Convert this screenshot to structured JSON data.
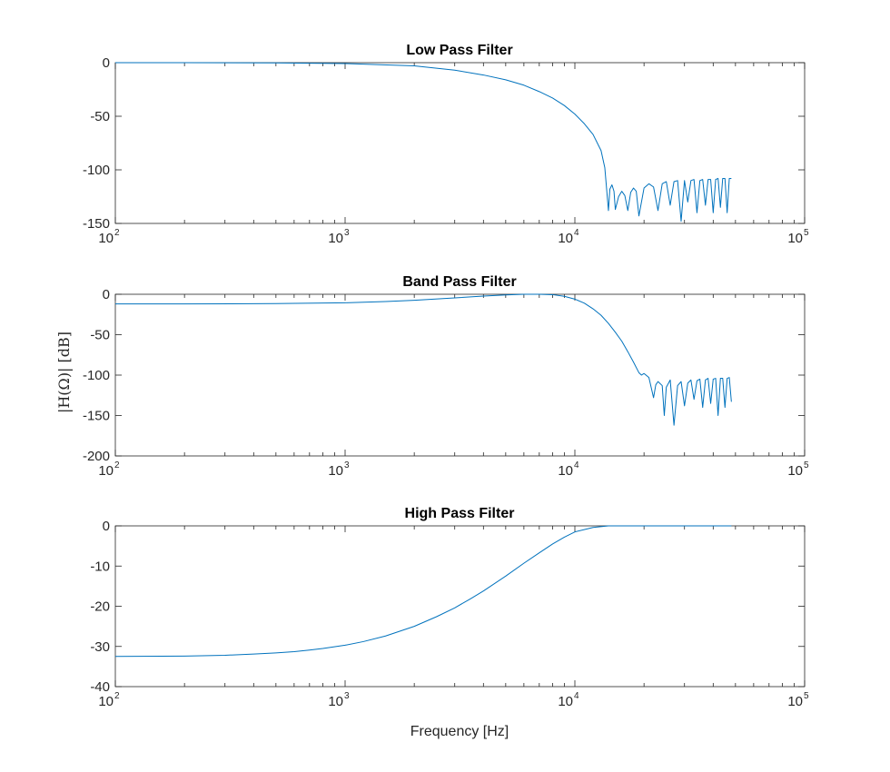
{
  "figure": {
    "ylabel": "|H(Ω)| [dB]",
    "xlabel": "Frequency [Hz]",
    "line_color": "#0072BD"
  },
  "chart_data": [
    {
      "type": "line",
      "title": "Low Pass Filter",
      "xscale": "log",
      "xlim": [
        100,
        100000
      ],
      "ylim": [
        -150,
        0
      ],
      "yticks": [
        0,
        -50,
        -100,
        -150
      ],
      "xticks": [
        100,
        1000,
        10000,
        100000
      ],
      "xtick_labels": [
        {
          "base": "10",
          "exp": "2"
        },
        {
          "base": "10",
          "exp": "3"
        },
        {
          "base": "10",
          "exp": "4"
        },
        {
          "base": "10",
          "exp": "5"
        }
      ],
      "series": [
        {
          "x": [
            100,
            200,
            500,
            1000,
            2000,
            3000,
            4000,
            5000,
            6000,
            7000,
            8000,
            9000,
            10000,
            11000,
            12000,
            13000,
            13500,
            14000,
            14200,
            14500,
            14800,
            15000,
            15500,
            16000,
            16500,
            17000,
            17500,
            18000,
            18500,
            19000,
            20000,
            21000,
            22000,
            23000,
            24000,
            25000,
            26000,
            27000,
            28000,
            29000,
            30000,
            31000,
            32000,
            33000,
            34000,
            35000,
            36000,
            37000,
            38000,
            39000,
            40000,
            41000,
            42000,
            43000,
            44000,
            45000,
            46000,
            47000,
            48000
          ],
          "y": [
            0,
            0,
            -0.2,
            -0.8,
            -3,
            -7,
            -11.5,
            -16,
            -21,
            -27,
            -33,
            -40,
            -48,
            -57,
            -67,
            -82,
            -98,
            -138,
            -118,
            -114,
            -120,
            -137,
            -125,
            -120,
            -124,
            -138,
            -121,
            -117,
            -120,
            -143,
            -117,
            -113,
            -116,
            -138,
            -113,
            -111,
            -133,
            -111,
            -110,
            -148,
            -110,
            -130,
            -110,
            -109,
            -140,
            -110,
            -109,
            -133,
            -109,
            -109,
            -140,
            -109,
            -108,
            -135,
            -108,
            -108,
            -140,
            -108,
            -108
          ]
        }
      ]
    },
    {
      "type": "line",
      "title": "Band Pass Filter",
      "xscale": "log",
      "xlim": [
        100,
        100000
      ],
      "ylim": [
        -200,
        0
      ],
      "yticks": [
        0,
        -50,
        -100,
        -150,
        -200
      ],
      "xticks": [
        100,
        1000,
        10000,
        100000
      ],
      "xtick_labels": [
        {
          "base": "10",
          "exp": "2"
        },
        {
          "base": "10",
          "exp": "3"
        },
        {
          "base": "10",
          "exp": "4"
        },
        {
          "base": "10",
          "exp": "5"
        }
      ],
      "series": [
        {
          "x": [
            100,
            200,
            500,
            1000,
            1500,
            2000,
            3000,
            4000,
            5000,
            6000,
            7000,
            8000,
            9000,
            10000,
            11000,
            12000,
            13000,
            14000,
            15000,
            16000,
            17000,
            18000,
            19000,
            19500,
            20000,
            21000,
            22000,
            22500,
            23000,
            24000,
            24500,
            25000,
            26000,
            27000,
            28000,
            29000,
            30000,
            31000,
            32000,
            33000,
            34000,
            35000,
            36000,
            37000,
            38000,
            39000,
            40000,
            41000,
            42000,
            43000,
            44000,
            45000,
            46000,
            47000,
            48000
          ],
          "y": [
            -12,
            -12,
            -11.5,
            -10.5,
            -9,
            -7.5,
            -4.5,
            -2.3,
            -0.8,
            0,
            0,
            -0.5,
            -2.5,
            -6,
            -11,
            -18,
            -26,
            -36,
            -47,
            -58,
            -71,
            -84,
            -97,
            -100,
            -98,
            -103,
            -128,
            -112,
            -108,
            -113,
            -150,
            -115,
            -106,
            -162,
            -113,
            -108,
            -138,
            -110,
            -106,
            -130,
            -107,
            -105,
            -140,
            -106,
            -104,
            -135,
            -105,
            -104,
            -150,
            -104,
            -104,
            -140,
            -104,
            -103,
            -133
          ]
        }
      ]
    },
    {
      "type": "line",
      "title": "High Pass Filter",
      "xscale": "log",
      "xlim": [
        100,
        100000
      ],
      "ylim": [
        -40,
        0
      ],
      "yticks": [
        0,
        -10,
        -20,
        -30,
        -40
      ],
      "xticks": [
        100,
        1000,
        10000,
        100000
      ],
      "xtick_labels": [
        {
          "base": "10",
          "exp": "2"
        },
        {
          "base": "10",
          "exp": "3"
        },
        {
          "base": "10",
          "exp": "4"
        },
        {
          "base": "10",
          "exp": "5"
        }
      ],
      "series": [
        {
          "x": [
            100,
            200,
            300,
            400,
            500,
            600,
            700,
            800,
            1000,
            1200,
            1500,
            2000,
            2500,
            3000,
            3500,
            4000,
            5000,
            6000,
            7000,
            8000,
            9000,
            10000,
            12000,
            14000,
            16000,
            20000,
            30000,
            40000,
            48000
          ],
          "y": [
            -32.5,
            -32.4,
            -32.2,
            -31.9,
            -31.6,
            -31.3,
            -30.9,
            -30.5,
            -29.7,
            -28.8,
            -27.4,
            -25,
            -22.6,
            -20.4,
            -18.2,
            -16.2,
            -12.5,
            -9.3,
            -6.7,
            -4.5,
            -2.8,
            -1.5,
            -0.4,
            0,
            0,
            0,
            0,
            0,
            0
          ]
        }
      ]
    }
  ]
}
